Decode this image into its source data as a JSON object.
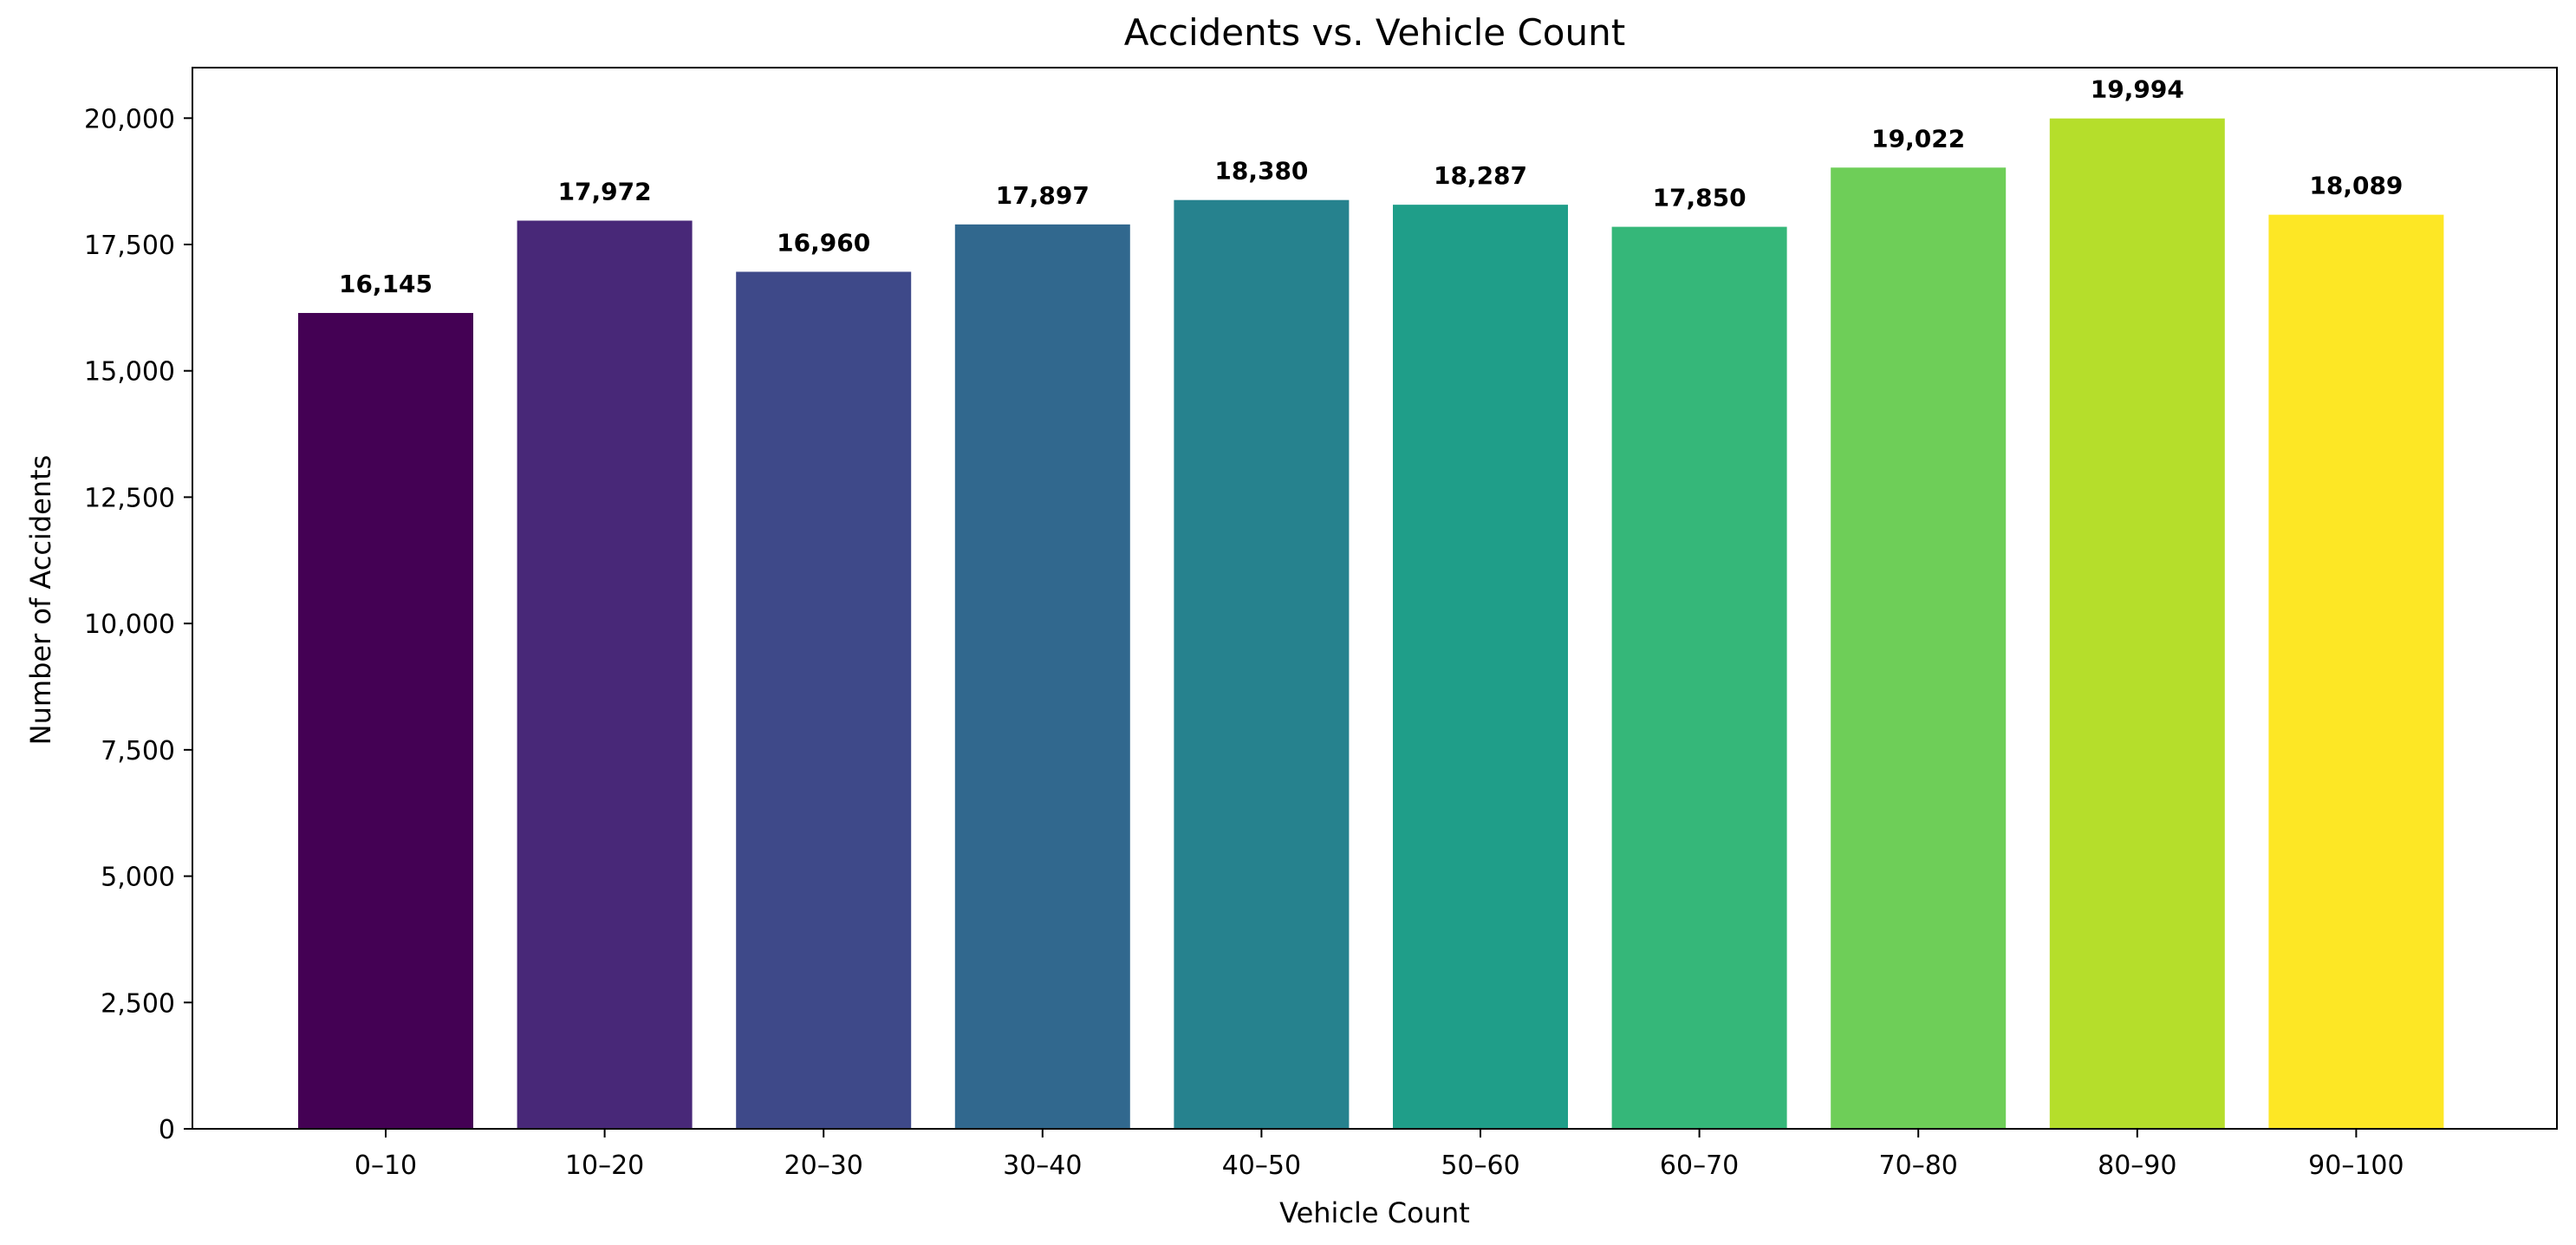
{
  "chart_data": {
    "type": "bar",
    "title": "Accidents vs. Vehicle Count",
    "xlabel": "Vehicle Count",
    "ylabel": "Number of Accidents",
    "categories": [
      "0–10",
      "10–20",
      "20–30",
      "30–40",
      "40–50",
      "50–60",
      "60–70",
      "70–80",
      "80–90",
      "90–100"
    ],
    "values": [
      16145,
      17972,
      16960,
      17897,
      18380,
      18287,
      17850,
      19022,
      19994,
      18089
    ],
    "value_labels": [
      "16,145",
      "17,972",
      "16,960",
      "17,897",
      "18,380",
      "18,287",
      "17,850",
      "19,022",
      "19,994",
      "18,089"
    ],
    "colors": [
      "#440154",
      "#482878",
      "#3e4989",
      "#31688e",
      "#26828e",
      "#1f9e89",
      "#35b779",
      "#6ece58",
      "#b5de2b",
      "#fde725"
    ],
    "ylim": [
      0,
      21000
    ],
    "yticks": [
      0,
      2500,
      5000,
      7500,
      10000,
      12500,
      15000,
      17500,
      20000
    ],
    "ytick_labels": [
      "0",
      "2,500",
      "5,000",
      "7,500",
      "10,000",
      "12,500",
      "15,000",
      "17,500",
      "20,000"
    ],
    "grid": false,
    "legend": false
  }
}
